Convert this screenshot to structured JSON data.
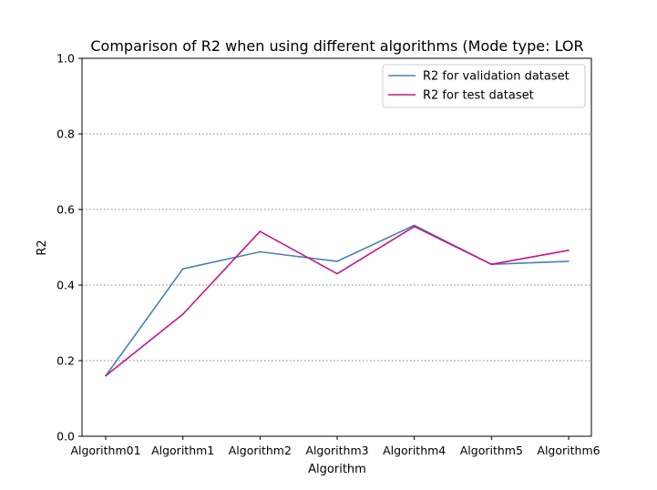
{
  "chart_data": {
    "type": "line",
    "title": "Comparison of R2 when using different algorithms (Mode type: LOR",
    "xlabel": "Algorithm",
    "ylabel": "R2",
    "categories": [
      "Algorithm01",
      "Algorithm1",
      "Algorithm2",
      "Algorithm3",
      "Algorithm4",
      "Algorithm5",
      "Algorithm6"
    ],
    "ylim": [
      0,
      1.0
    ],
    "yticks": [
      "0.0",
      "0.2",
      "0.4",
      "0.6",
      "0.8",
      "1.0"
    ],
    "grid": "y-dotted",
    "legend_position": "top-right",
    "series": [
      {
        "name": "R2 for validation dataset",
        "color": "#4682b4",
        "values": [
          0.16,
          0.443,
          0.488,
          0.463,
          0.558,
          0.455,
          0.463
        ]
      },
      {
        "name": "R2 for test dataset",
        "color": "#c71585",
        "values": [
          0.16,
          0.323,
          0.542,
          0.43,
          0.555,
          0.455,
          0.492
        ]
      }
    ]
  }
}
